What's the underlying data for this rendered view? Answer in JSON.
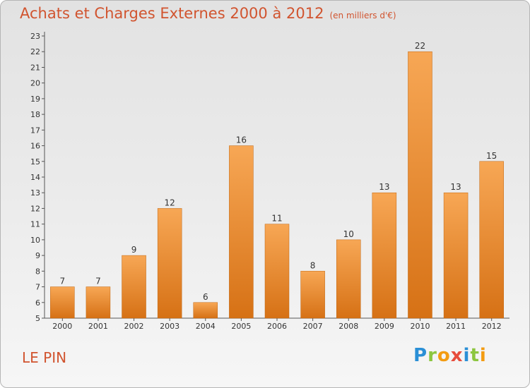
{
  "header": {
    "title": "Achats et Charges Externes 2000 à 2012",
    "subtitle": "(en milliers d'€)"
  },
  "footer": {
    "commune": "LE PIN",
    "logo": "Proxiti"
  },
  "colors": {
    "bar_top": "#f7a755",
    "bar_bottom": "#d67115",
    "title": "#d1542f"
  },
  "chart_data": {
    "type": "bar",
    "title": "Achats et Charges Externes 2000 à 2012",
    "subtitle": "(en milliers d'€)",
    "xlabel": "",
    "ylabel": "",
    "ylim": [
      5,
      23
    ],
    "yticks": [
      5,
      6,
      7,
      8,
      9,
      10,
      11,
      12,
      13,
      14,
      15,
      16,
      17,
      18,
      19,
      20,
      21,
      22,
      23
    ],
    "grid": false,
    "categories": [
      "2000",
      "2001",
      "2002",
      "2003",
      "2004",
      "2005",
      "2006",
      "2007",
      "2008",
      "2009",
      "2010",
      "2011",
      "2012"
    ],
    "values": [
      7,
      7,
      9,
      12,
      6,
      16,
      11,
      8,
      10,
      13,
      22,
      13,
      15
    ]
  }
}
